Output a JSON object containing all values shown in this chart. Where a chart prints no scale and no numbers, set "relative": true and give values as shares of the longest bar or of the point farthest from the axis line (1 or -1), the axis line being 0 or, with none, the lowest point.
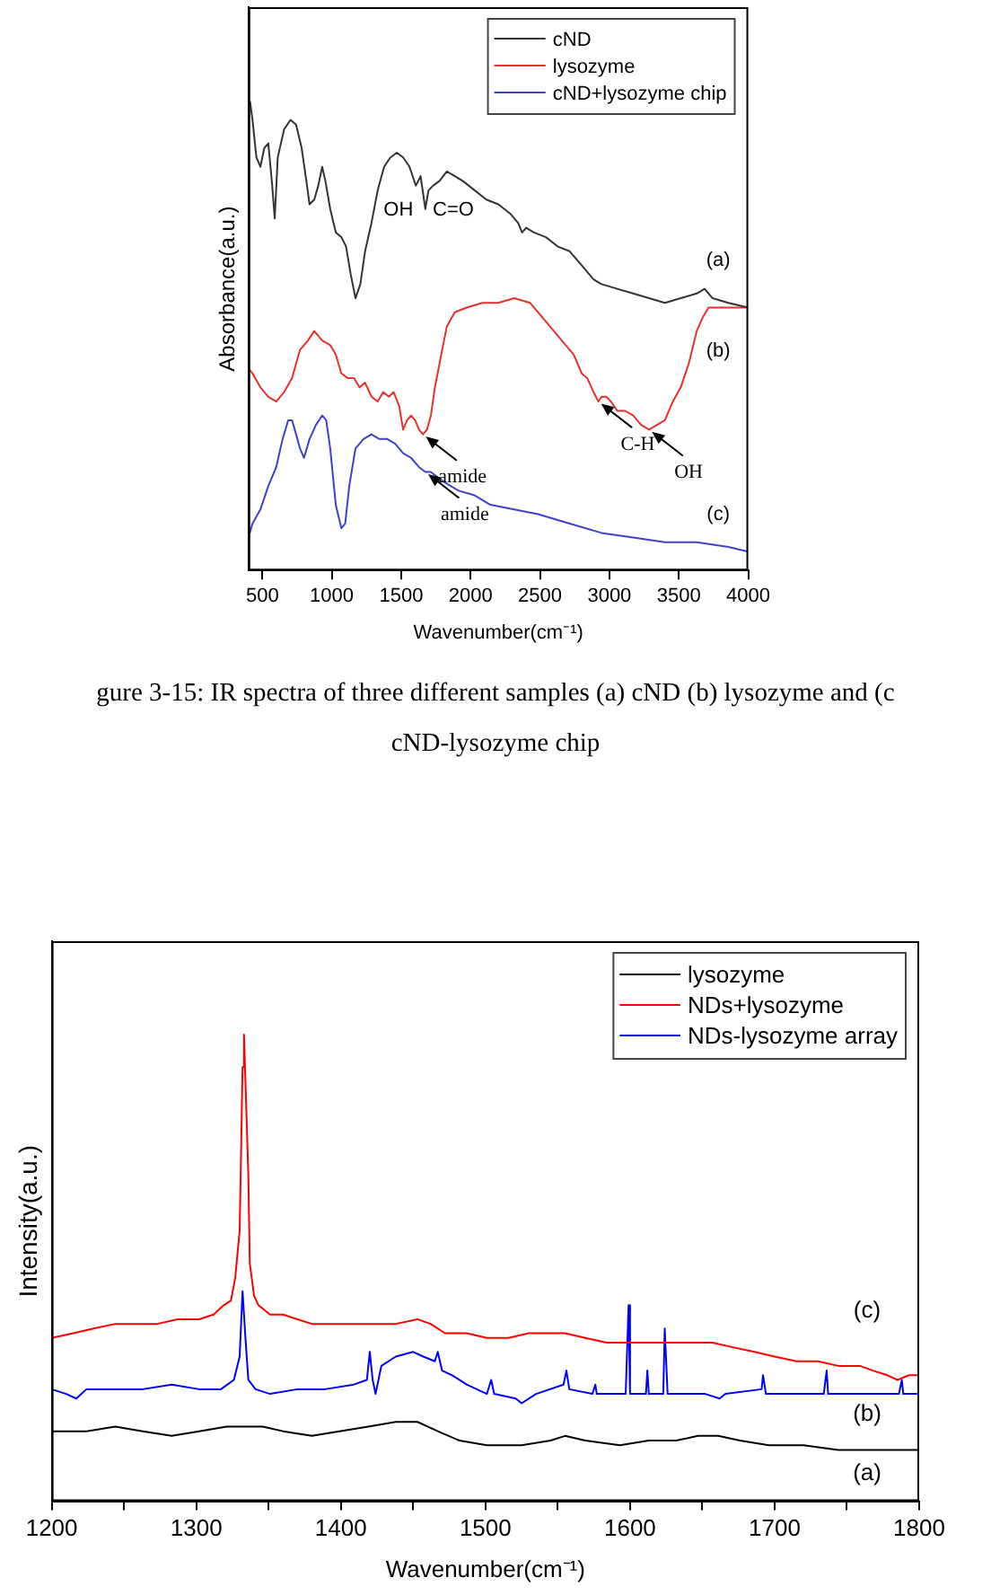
{
  "chart_data": [
    {
      "type": "line",
      "relative": true,
      "xlabel": "Wavenumber(cm⁻¹)",
      "ylabel": "Absorbance(a.u.)",
      "xlim": [
        400,
        4000
      ],
      "xticks": [
        500,
        1000,
        1500,
        2000,
        2500,
        3000,
        3500,
        4000
      ],
      "legend": "top right",
      "grid": false,
      "series": [
        {
          "name": "cND",
          "color": "#333333",
          "x": [
            411,
            429,
            457,
            486,
            514,
            543,
            571,
            589,
            611,
            657,
            703,
            743,
            783,
            817,
            840,
            874,
            903,
            931,
            954,
            989,
            1029,
            1069,
            1103,
            1137,
            1171,
            1206,
            1240,
            1286,
            1331,
            1377,
            1423,
            1469,
            1514,
            1560,
            1606,
            1640,
            1674,
            1697,
            1731,
            1777,
            1829,
            1886,
            1943,
            2029,
            2114,
            2200,
            2286,
            2343,
            2371,
            2400,
            2457,
            2543,
            2629,
            2714,
            2800,
            2886,
            2943,
            3057,
            3171,
            3286,
            3400,
            3514,
            3629,
            3686,
            3743,
            3857,
            4000
          ],
          "values": [
            1.0,
            0.96,
            0.88,
            0.86,
            0.9,
            0.91,
            0.82,
            0.75,
            0.88,
            0.94,
            0.96,
            0.95,
            0.9,
            0.83,
            0.78,
            0.79,
            0.82,
            0.86,
            0.83,
            0.77,
            0.72,
            0.71,
            0.69,
            0.63,
            0.58,
            0.61,
            0.68,
            0.74,
            0.81,
            0.86,
            0.88,
            0.89,
            0.88,
            0.86,
            0.82,
            0.84,
            0.77,
            0.81,
            0.82,
            0.83,
            0.85,
            0.84,
            0.83,
            0.81,
            0.79,
            0.78,
            0.76,
            0.74,
            0.72,
            0.73,
            0.72,
            0.71,
            0.69,
            0.68,
            0.65,
            0.62,
            0.61,
            0.6,
            0.59,
            0.58,
            0.57,
            0.58,
            0.59,
            0.6,
            0.58,
            0.57,
            0.56
          ]
        },
        {
          "name": "lysozyme",
          "color": "#e8302c",
          "x": [
            400,
            429,
            486,
            543,
            600,
            657,
            714,
            771,
            829,
            874,
            931,
            989,
            1029,
            1069,
            1114,
            1160,
            1200,
            1240,
            1286,
            1331,
            1371,
            1411,
            1446,
            1486,
            1514,
            1543,
            1571,
            1600,
            1629,
            1657,
            1686,
            1714,
            1743,
            1789,
            1829,
            1886,
            1971,
            2086,
            2200,
            2314,
            2429,
            2543,
            2657,
            2743,
            2800,
            2840,
            2886,
            2920,
            2943,
            2977,
            3011,
            3057,
            3114,
            3171,
            3229,
            3286,
            3343,
            3400,
            3457,
            3514,
            3571,
            3629,
            3674,
            3714,
            3800,
            3886,
            4000
          ],
          "values": [
            0.43,
            0.42,
            0.39,
            0.37,
            0.36,
            0.38,
            0.41,
            0.47,
            0.49,
            0.51,
            0.49,
            0.48,
            0.46,
            0.42,
            0.41,
            0.41,
            0.39,
            0.4,
            0.37,
            0.36,
            0.38,
            0.37,
            0.38,
            0.35,
            0.3,
            0.32,
            0.33,
            0.32,
            0.3,
            0.29,
            0.3,
            0.33,
            0.39,
            0.46,
            0.52,
            0.55,
            0.56,
            0.57,
            0.57,
            0.58,
            0.57,
            0.53,
            0.49,
            0.46,
            0.42,
            0.41,
            0.38,
            0.36,
            0.37,
            0.37,
            0.36,
            0.34,
            0.34,
            0.33,
            0.31,
            0.3,
            0.31,
            0.32,
            0.36,
            0.39,
            0.44,
            0.51,
            0.54,
            0.56,
            0.56,
            0.56,
            0.56
          ]
        },
        {
          "name": "cND+lysozyme chip",
          "color": "#4040cc",
          "x": [
            400,
            429,
            486,
            543,
            600,
            646,
            686,
            714,
            743,
            771,
            800,
            840,
            886,
            931,
            960,
            989,
            1029,
            1069,
            1097,
            1126,
            1171,
            1229,
            1286,
            1343,
            1400,
            1457,
            1514,
            1571,
            1629,
            1674,
            1714,
            1800,
            1914,
            2029,
            2143,
            2314,
            2486,
            2714,
            2943,
            3171,
            3400,
            3629,
            3857,
            4000
          ],
          "values": [
            0.07,
            0.1,
            0.13,
            0.18,
            0.22,
            0.28,
            0.32,
            0.32,
            0.29,
            0.26,
            0.24,
            0.28,
            0.31,
            0.33,
            0.32,
            0.26,
            0.14,
            0.09,
            0.1,
            0.18,
            0.26,
            0.28,
            0.29,
            0.28,
            0.28,
            0.27,
            0.25,
            0.24,
            0.22,
            0.21,
            0.21,
            0.19,
            0.17,
            0.16,
            0.14,
            0.13,
            0.12,
            0.1,
            0.08,
            0.07,
            0.06,
            0.06,
            0.05,
            0.04
          ]
        }
      ],
      "annotations": [
        "OH",
        "C=O",
        "(a)",
        "(b)",
        "(c)",
        {
          "text": "amide",
          "x": 1657,
          "y": 0.29
        },
        {
          "text": "C-H",
          "x": 2920,
          "y": 0.36
        },
        {
          "text": "OH",
          "x": 3286,
          "y": 0.3
        },
        {
          "text": "amide",
          "x": 1674,
          "y": 0.21
        },
        "gure 3-15: IR spectra of three different samples (a) cND (b) lysozyme and (c",
        "cND-lysozyme chip"
      ]
    },
    {
      "type": "line",
      "relative": true,
      "xlabel": "Wavenumber(cm⁻¹)",
      "ylabel": "Intensity(a.u.)",
      "xlim": [
        1200,
        1800
      ],
      "xticks": [
        1200,
        {
          "value": 1250,
          "label": null
        },
        1300,
        {
          "value": 1350,
          "label": null
        },
        1400,
        {
          "value": 1450,
          "label": null
        },
        1500,
        {
          "value": 1550,
          "label": null
        },
        1600,
        {
          "value": 1650,
          "label": null
        },
        1700,
        {
          "value": 1750,
          "label": null
        },
        1800
      ],
      "legend": "top right",
      "grid": false,
      "series": [
        {
          "name": "lysozyme",
          "color": "#000000",
          "x": [
            1200,
            1224,
            1244,
            1263,
            1283,
            1302,
            1321,
            1331,
            1346,
            1360,
            1380,
            1399,
            1419,
            1438,
            1453,
            1467,
            1482,
            1501,
            1525,
            1545,
            1555,
            1569,
            1593,
            1613,
            1632,
            1647,
            1661,
            1676,
            1696,
            1720,
            1744,
            1768,
            1800
          ],
          "values": [
            0.15,
            0.15,
            0.16,
            0.15,
            0.14,
            0.15,
            0.16,
            0.16,
            0.16,
            0.15,
            0.14,
            0.15,
            0.16,
            0.17,
            0.17,
            0.15,
            0.13,
            0.12,
            0.12,
            0.13,
            0.14,
            0.13,
            0.12,
            0.13,
            0.13,
            0.14,
            0.14,
            0.13,
            0.12,
            0.12,
            0.11,
            0.11,
            0.11
          ]
        },
        {
          "name": "NDs+lysozyme",
          "color": "#ff0000",
          "x": [
            1200,
            1215,
            1229,
            1244,
            1258,
            1273,
            1287,
            1302,
            1312,
            1319,
            1324,
            1327,
            1330,
            1331,
            1332,
            1333,
            1334,
            1336,
            1337,
            1340,
            1343,
            1351,
            1360,
            1370,
            1380,
            1394,
            1409,
            1423,
            1438,
            1453,
            1462,
            1472,
            1487,
            1501,
            1516,
            1530,
            1545,
            1555,
            1569,
            1584,
            1598,
            1613,
            1627,
            1642,
            1657,
            1671,
            1686,
            1700,
            1715,
            1730,
            1744,
            1759,
            1768,
            1778,
            1785,
            1793,
            1800
          ],
          "values": [
            0.35,
            0.36,
            0.37,
            0.38,
            0.38,
            0.38,
            0.39,
            0.39,
            0.4,
            0.42,
            0.43,
            0.48,
            0.58,
            0.75,
            0.93,
            1.0,
            0.9,
            0.7,
            0.51,
            0.44,
            0.42,
            0.4,
            0.4,
            0.39,
            0.38,
            0.38,
            0.38,
            0.38,
            0.38,
            0.39,
            0.38,
            0.36,
            0.36,
            0.35,
            0.35,
            0.36,
            0.36,
            0.36,
            0.35,
            0.34,
            0.34,
            0.34,
            0.34,
            0.34,
            0.34,
            0.33,
            0.32,
            0.31,
            0.3,
            0.3,
            0.29,
            0.29,
            0.28,
            0.27,
            0.26,
            0.27,
            0.27
          ]
        },
        {
          "name": "NDs-lysozyme array",
          "color": "#0000ff",
          "x": [
            1200,
            1210,
            1217,
            1224,
            1244,
            1263,
            1283,
            1302,
            1317,
            1326,
            1330,
            1332,
            1334,
            1336,
            1341,
            1351,
            1370,
            1389,
            1409,
            1418,
            1420,
            1422,
            1424,
            1428,
            1438,
            1450,
            1457,
            1465,
            1467,
            1470,
            1477,
            1487,
            1501,
            1504,
            1506,
            1521,
            1525,
            1535,
            1554,
            1556,
            1558,
            1574,
            1576,
            1577,
            1597,
            1599,
            1600,
            1611,
            1612,
            1613,
            1623,
            1624,
            1626,
            1652,
            1662,
            1666,
            1691,
            1692,
            1694,
            1734,
            1736,
            1737,
            1768,
            1786,
            1788,
            1789,
            1800
          ],
          "values": [
            0.24,
            0.23,
            0.22,
            0.24,
            0.24,
            0.24,
            0.25,
            0.24,
            0.24,
            0.26,
            0.31,
            0.45,
            0.35,
            0.26,
            0.24,
            0.23,
            0.24,
            0.24,
            0.25,
            0.26,
            0.32,
            0.26,
            0.23,
            0.29,
            0.31,
            0.32,
            0.31,
            0.3,
            0.32,
            0.28,
            0.27,
            0.25,
            0.23,
            0.26,
            0.23,
            0.22,
            0.21,
            0.23,
            0.25,
            0.28,
            0.24,
            0.23,
            0.25,
            0.23,
            0.23,
            0.42,
            0.23,
            0.23,
            0.28,
            0.23,
            0.23,
            0.37,
            0.23,
            0.23,
            0.22,
            0.23,
            0.24,
            0.27,
            0.23,
            0.23,
            0.28,
            0.23,
            0.23,
            0.23,
            0.26,
            0.23,
            0.23
          ]
        }
      ],
      "annotations": [
        "(c)",
        "(b)",
        "(a)"
      ]
    }
  ]
}
